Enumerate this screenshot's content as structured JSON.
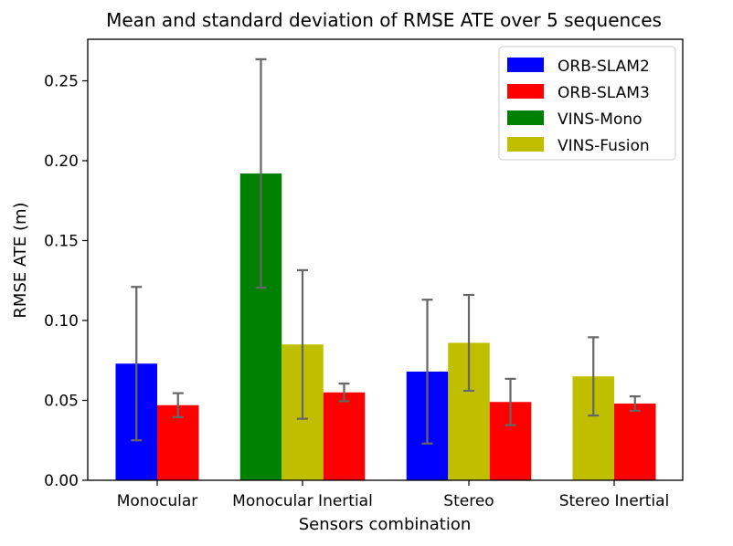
{
  "chart_data": {
    "type": "bar",
    "title": "Mean and standard deviation of RMSE ATE over 5 sequences",
    "xlabel": "Sensors combination",
    "ylabel": "RMSE ATE (m)",
    "ylim": [
      0,
      0.276
    ],
    "yticks": [
      0.0,
      0.05,
      0.1,
      0.15,
      0.2,
      0.25
    ],
    "ytick_labels": [
      "0.00",
      "0.05",
      "0.10",
      "0.15",
      "0.20",
      "0.25"
    ],
    "legend_position": "top-right",
    "series": [
      {
        "name": "ORB-SLAM2",
        "color": "#0000ff"
      },
      {
        "name": "ORB-SLAM3",
        "color": "#ff0000"
      },
      {
        "name": "VINS-Mono",
        "color": "#008000"
      },
      {
        "name": "VINS-Fusion",
        "color": "#bfbf00"
      }
    ],
    "groups": [
      {
        "category": "Monocular",
        "bars": [
          {
            "series": "ORB-SLAM2",
            "mean": 0.073,
            "std": 0.048
          },
          {
            "series": "ORB-SLAM3",
            "mean": 0.047,
            "std": 0.0075
          }
        ]
      },
      {
        "category": "Monocular Inertial",
        "bars": [
          {
            "series": "VINS-Mono",
            "mean": 0.192,
            "std": 0.0715
          },
          {
            "series": "VINS-Fusion",
            "mean": 0.085,
            "std": 0.0465
          },
          {
            "series": "ORB-SLAM3",
            "mean": 0.055,
            "std": 0.0055
          }
        ]
      },
      {
        "category": "Stereo",
        "bars": [
          {
            "series": "ORB-SLAM2",
            "mean": 0.068,
            "std": 0.045
          },
          {
            "series": "VINS-Fusion",
            "mean": 0.086,
            "std": 0.03
          },
          {
            "series": "ORB-SLAM3",
            "mean": 0.049,
            "std": 0.0145
          }
        ]
      },
      {
        "category": "Stereo Inertial",
        "bars": [
          {
            "series": "VINS-Fusion",
            "mean": 0.065,
            "std": 0.0245
          },
          {
            "series": "ORB-SLAM3",
            "mean": 0.048,
            "std": 0.0045
          }
        ]
      }
    ],
    "errorbar_color": "#666666"
  }
}
